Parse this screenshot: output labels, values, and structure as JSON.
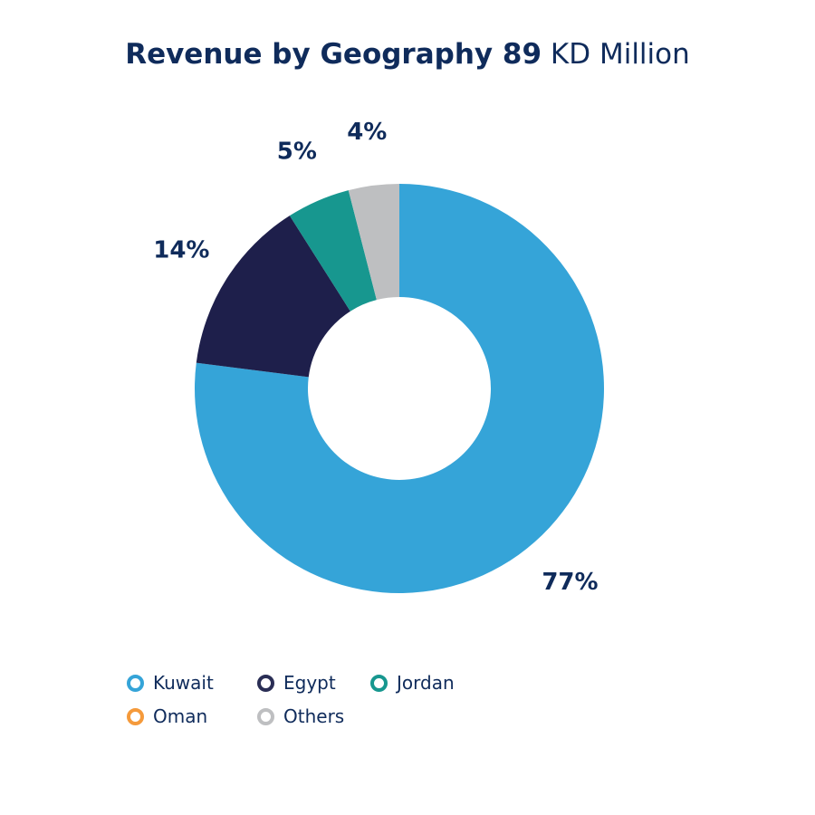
{
  "title": {
    "main": "Revenue by Geography 89",
    "unit": "KD Million"
  },
  "chart_data": {
    "type": "pie",
    "title": "Revenue by Geography 89 KD Million",
    "donut": true,
    "categories": [
      "Kuwait",
      "Egypt",
      "Jordan",
      "Oman",
      "Others"
    ],
    "values": [
      77,
      14,
      5,
      0,
      4
    ],
    "labels": [
      "77%",
      "14%",
      "5%",
      "",
      "4%"
    ],
    "colors": [
      "#35a4d8",
      "#1e1f4b",
      "#17978f",
      "#f59a3b",
      "#bebfc1"
    ],
    "legend_position": "bottom-left"
  },
  "legend": [
    {
      "label": "Kuwait",
      "color": "#35a4d8"
    },
    {
      "label": "Egypt",
      "color": "#2a2e55"
    },
    {
      "label": "Jordan",
      "color": "#17978f"
    },
    {
      "label": "Oman",
      "color": "#f59a3b"
    },
    {
      "label": "Others",
      "color": "#bebfc1"
    }
  ]
}
